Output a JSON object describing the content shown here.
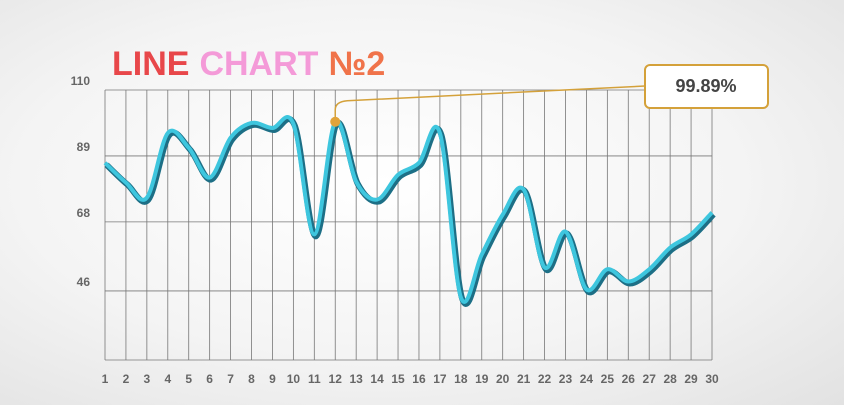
{
  "chart_data": {
    "type": "line",
    "title": [
      {
        "text": "LINE",
        "color": "#e8474a"
      },
      {
        "text": "CHART",
        "color": "#f49ad8"
      },
      {
        "text": "№2",
        "color": "#f0734a"
      }
    ],
    "categories": [
      "1",
      "2",
      "3",
      "4",
      "5",
      "6",
      "7",
      "8",
      "9",
      "10",
      "11",
      "12",
      "13",
      "14",
      "15",
      "16",
      "17",
      "18",
      "19",
      "20",
      "21",
      "22",
      "23",
      "24",
      "25",
      "26",
      "27",
      "28",
      "29",
      "30"
    ],
    "series": [
      {
        "color": "#3ec6de",
        "values": [
          86.8,
          80.5,
          75.7,
          96.3,
          91.6,
          82.1,
          94.8,
          99.5,
          97.9,
          99.2,
          64.0,
          99.89,
          80.8,
          75.1,
          83.0,
          86.8,
          96.3,
          44.0,
          57.6,
          70.3,
          78.3,
          53.5,
          64.9,
          46.5,
          52.9,
          49.0,
          52.9,
          59.8,
          64.0,
          71.0
        ],
        "value_labels": [
          null,
          null,
          null,
          null,
          null,
          null,
          null,
          null,
          null,
          null,
          null,
          "99.89%",
          null,
          null,
          null,
          null,
          null,
          null,
          null,
          null,
          null,
          null,
          null,
          null,
          null,
          null,
          null,
          null,
          null,
          null
        ]
      }
    ],
    "ylim": [
      24,
      110
    ],
    "yticks": [
      46,
      68,
      89,
      110
    ],
    "grid": true
  }
}
